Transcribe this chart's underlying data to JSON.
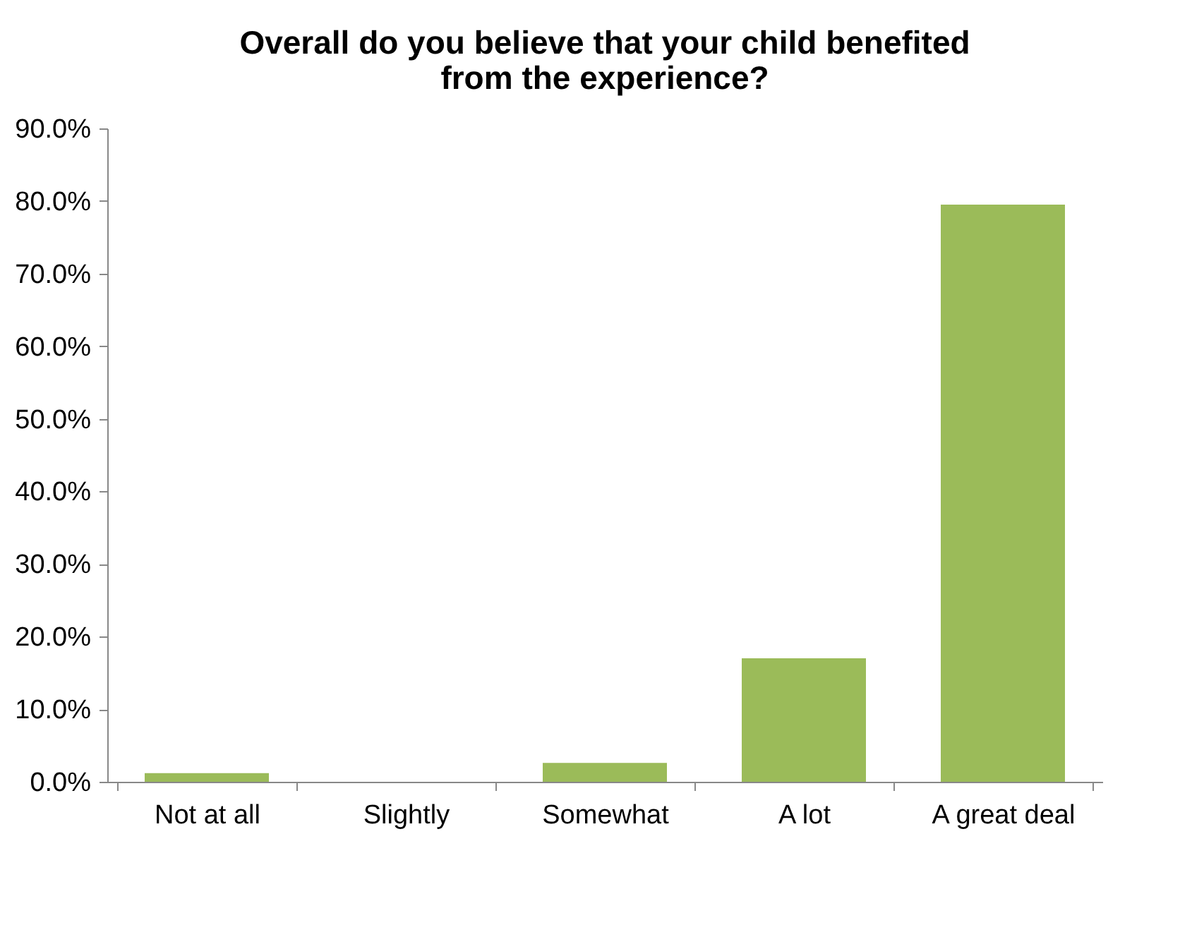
{
  "chart_data": {
    "type": "bar",
    "title": "Overall do you believe that your child benefited from the experience?",
    "categories": [
      "Not at all",
      "Slightly",
      "Somewhat",
      "A lot",
      "A great deal"
    ],
    "values": [
      1.2,
      0,
      2.6,
      17.0,
      79.5
    ],
    "color": "#9bbb59",
    "ylim": [
      0,
      90
    ],
    "yticks": [
      {
        "value": 0,
        "label": "0.0%"
      },
      {
        "value": 10,
        "label": "10.0%"
      },
      {
        "value": 20,
        "label": "20.0%"
      },
      {
        "value": 30,
        "label": "30.0%"
      },
      {
        "value": 40,
        "label": "40.0%"
      },
      {
        "value": 50,
        "label": "50.0%"
      },
      {
        "value": 60,
        "label": "60.0%"
      },
      {
        "value": 70,
        "label": "70.0%"
      },
      {
        "value": 80,
        "label": "80.0%"
      },
      {
        "value": 90,
        "label": "90.0%"
      }
    ],
    "grid": false
  }
}
